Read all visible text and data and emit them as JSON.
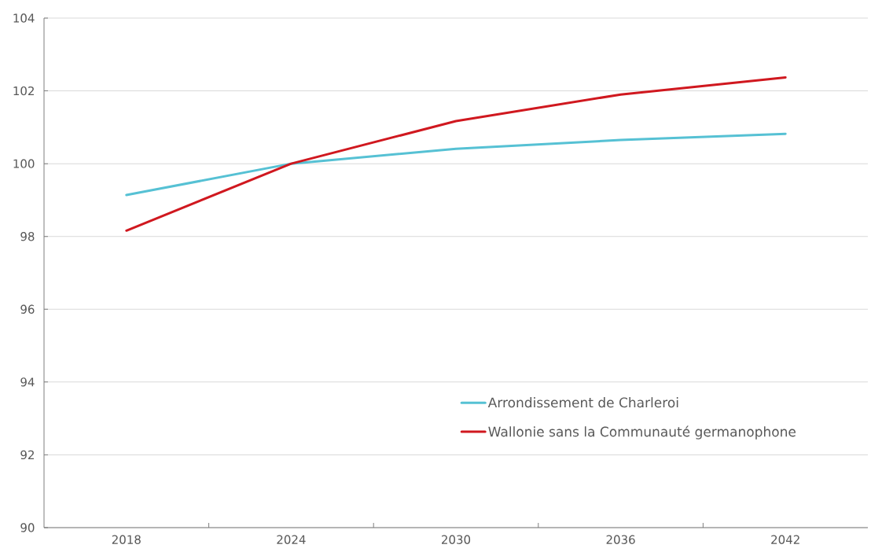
{
  "chart_data": {
    "type": "line",
    "categories": [
      "2018",
      "2024",
      "2030",
      "2036",
      "2042"
    ],
    "series": [
      {
        "name": "Arrondissement de Charleroi",
        "color": "#56C1D4",
        "values": [
          99.14,
          100.0,
          100.41,
          100.65,
          100.82
        ]
      },
      {
        "name": "Wallonie sans la Communauté germanophone",
        "color": "#D0181F",
        "values": [
          98.16,
          100.0,
          101.17,
          101.9,
          102.37
        ]
      }
    ],
    "ylim": [
      90,
      104
    ],
    "yticks": [
      90,
      92,
      94,
      96,
      98,
      100,
      102,
      104
    ],
    "grid": "y",
    "legend": "bottom right",
    "line_style": "solid"
  }
}
